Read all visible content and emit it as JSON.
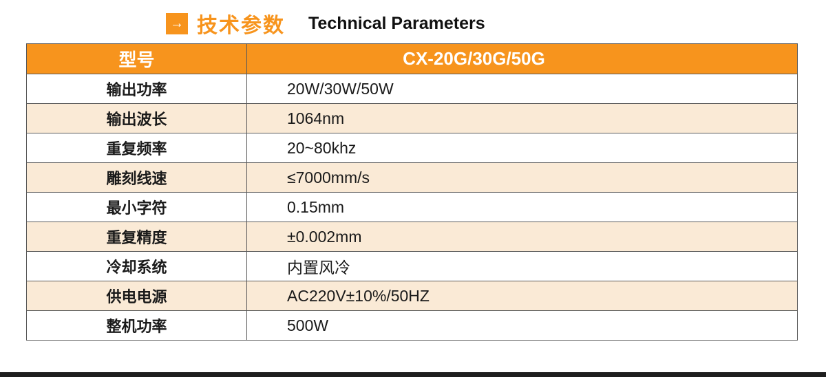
{
  "header": {
    "arrow_icon": "→",
    "title_cn": "技术参数",
    "title_en": "Technical Parameters"
  },
  "colors": {
    "accent_orange": "#F7941D",
    "alt_row_cream": "#FAEAD6",
    "table_border": "#595959",
    "footer_bar": "#1E1E1E",
    "header_text": "#FFFFFF"
  },
  "table": {
    "header": {
      "model_label": "型号",
      "model_value": "CX-20G/30G/50G"
    },
    "rows": [
      {
        "label": "输出功率",
        "value": "20W/30W/50W"
      },
      {
        "label": "输出波长",
        "value": "1064nm"
      },
      {
        "label": "重复频率",
        "value": "20~80khz"
      },
      {
        "label": "雕刻线速",
        "value": "≤7000mm/s"
      },
      {
        "label": "最小字符",
        "value": "0.15mm"
      },
      {
        "label": "重复精度",
        "value": "±0.002mm"
      },
      {
        "label": "冷却系统",
        "value": "内置风冷"
      },
      {
        "label": "供电电源",
        "value": "AC220V±10%/50HZ"
      },
      {
        "label": "整机功率",
        "value": "500W"
      }
    ]
  }
}
